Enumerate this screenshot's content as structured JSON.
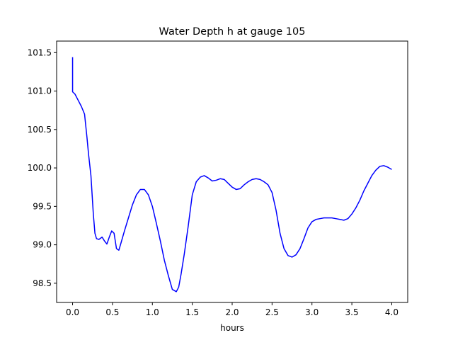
{
  "chart_data": {
    "type": "line",
    "title": "Water Depth h at gauge 105",
    "xlabel": "hours",
    "ylabel": "",
    "xlim": [
      -0.2,
      4.2
    ],
    "ylim": [
      98.25,
      101.65
    ],
    "xticks": [
      0.0,
      0.5,
      1.0,
      1.5,
      2.0,
      2.5,
      3.0,
      3.5,
      4.0
    ],
    "xtick_labels": [
      "0.0",
      "0.5",
      "1.0",
      "1.5",
      "2.0",
      "2.5",
      "3.0",
      "3.5",
      "4.0"
    ],
    "yticks": [
      98.5,
      99.0,
      99.5,
      100.0,
      100.5,
      101.0,
      101.5
    ],
    "ytick_labels": [
      "98.5",
      "99.0",
      "99.5",
      "100.0",
      "100.5",
      "101.0",
      "101.5"
    ],
    "grid": false,
    "legend": "none",
    "series": [
      {
        "color": "#0000ff",
        "x": [
          0.0,
          0.0,
          0.0,
          0.03,
          0.07,
          0.11,
          0.15,
          0.18,
          0.2,
          0.23,
          0.26,
          0.28,
          0.3,
          0.33,
          0.37,
          0.4,
          0.43,
          0.46,
          0.49,
          0.52,
          0.55,
          0.58,
          0.6,
          0.65,
          0.7,
          0.75,
          0.8,
          0.85,
          0.9,
          0.95,
          1.0,
          1.05,
          1.1,
          1.15,
          1.2,
          1.25,
          1.3,
          1.33,
          1.36,
          1.4,
          1.45,
          1.5,
          1.55,
          1.6,
          1.65,
          1.7,
          1.75,
          1.8,
          1.85,
          1.9,
          1.95,
          2.0,
          2.05,
          2.1,
          2.15,
          2.2,
          2.25,
          2.3,
          2.35,
          2.4,
          2.45,
          2.5,
          2.55,
          2.6,
          2.65,
          2.7,
          2.75,
          2.8,
          2.85,
          2.9,
          2.95,
          3.0,
          3.05,
          3.1,
          3.15,
          3.2,
          3.25,
          3.3,
          3.35,
          3.4,
          3.45,
          3.5,
          3.55,
          3.6,
          3.65,
          3.7,
          3.75,
          3.8,
          3.85,
          3.9,
          3.95,
          4.0
        ],
        "y": [
          101.44,
          101.44,
          100.99,
          100.96,
          100.88,
          100.8,
          100.7,
          100.4,
          100.18,
          99.9,
          99.4,
          99.15,
          99.08,
          99.07,
          99.1,
          99.05,
          99.01,
          99.1,
          99.18,
          99.15,
          98.95,
          98.93,
          99.0,
          99.18,
          99.35,
          99.52,
          99.65,
          99.72,
          99.72,
          99.65,
          99.5,
          99.28,
          99.05,
          98.8,
          98.6,
          98.42,
          98.39,
          98.45,
          98.62,
          98.88,
          99.25,
          99.65,
          99.82,
          99.88,
          99.9,
          99.87,
          99.83,
          99.84,
          99.86,
          99.85,
          99.8,
          99.75,
          99.72,
          99.73,
          99.78,
          99.82,
          99.85,
          99.86,
          99.85,
          99.82,
          99.78,
          99.68,
          99.45,
          99.15,
          98.95,
          98.86,
          98.84,
          98.87,
          98.95,
          99.08,
          99.22,
          99.3,
          99.33,
          99.34,
          99.35,
          99.35,
          99.35,
          99.34,
          99.33,
          99.32,
          99.34,
          99.4,
          99.48,
          99.58,
          99.7,
          99.8,
          99.9,
          99.97,
          100.02,
          100.03,
          100.01,
          99.98
        ]
      }
    ]
  }
}
